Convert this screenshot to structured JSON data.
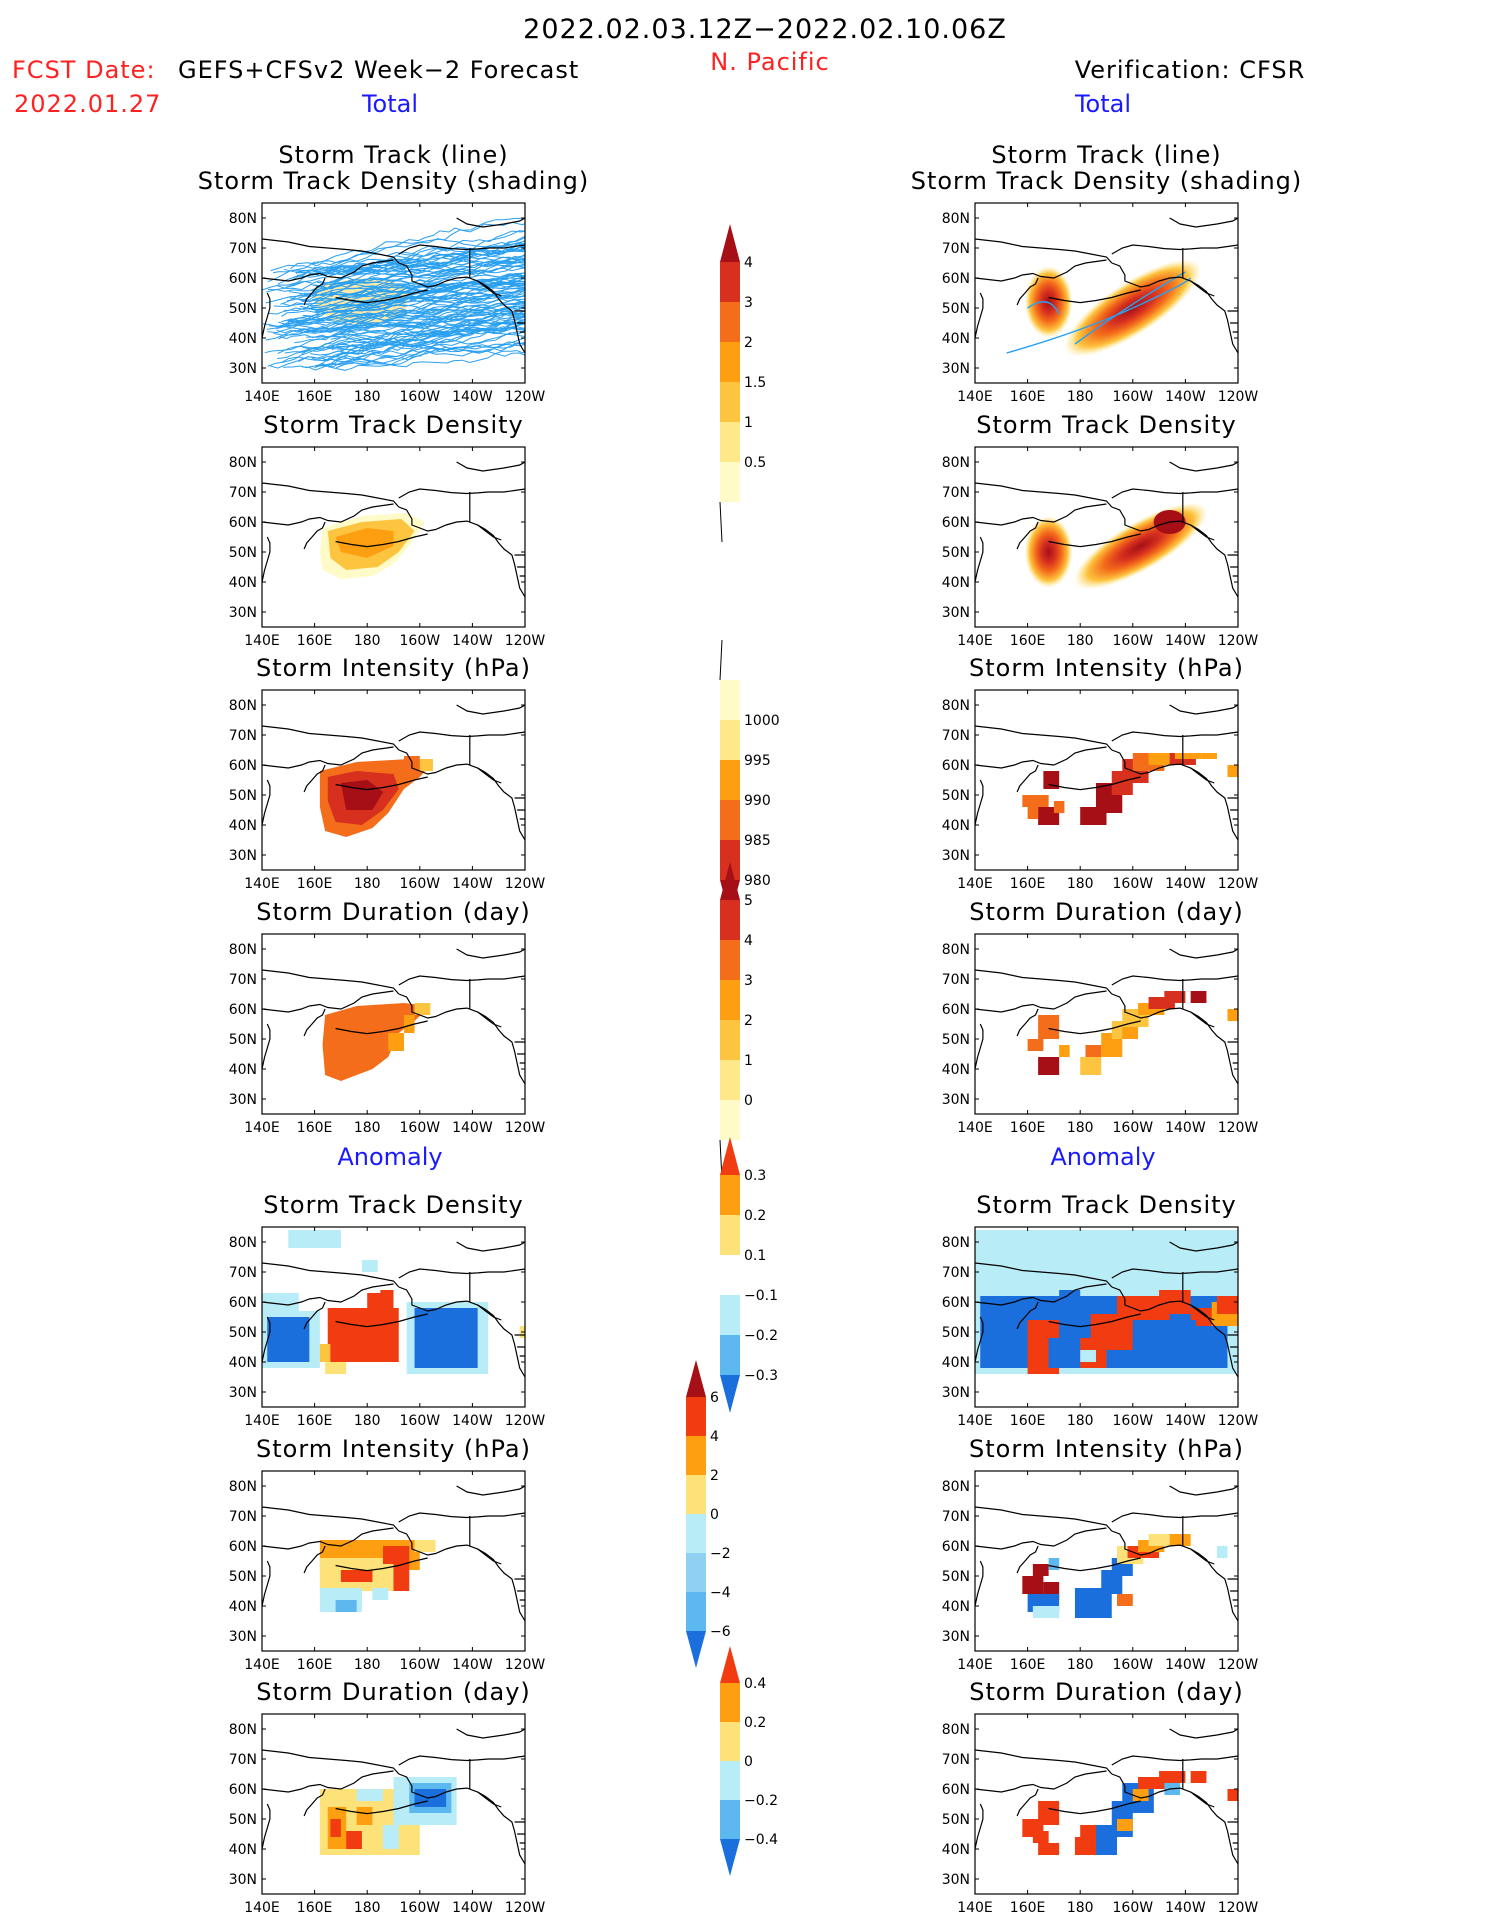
{
  "header": {
    "date_range": "2022.02.03.12Z−2022.02.10.06Z",
    "fcst_label": "FCST Date:",
    "fcst_model": "GEFS+CFSv2 Week−2 Forecast",
    "fcst_date": "2022.01.27",
    "region": "N. Pacific",
    "verification": "Verification: CFSR"
  },
  "sections": {
    "total": "Total",
    "anomaly": "Anomaly"
  },
  "panel_titles": {
    "track_line": "Storm Track (line)",
    "track_shading": "Storm Track Density (shading)",
    "density": "Storm Track Density",
    "intensity": "Storm Intensity (hPa)",
    "duration": "Storm Duration (day)"
  },
  "axes": {
    "lat_ticks": [
      "80N",
      "70N",
      "60N",
      "50N",
      "40N",
      "30N"
    ],
    "lon_ticks": [
      "140E",
      "160E",
      "180",
      "160W",
      "140W",
      "120W"
    ]
  },
  "colors": {
    "title_red": "#ff2020",
    "title_blue": "#1a1aff",
    "track_line": "#2aa0f0"
  },
  "chart_data": [
    {
      "type": "heatmap",
      "name": "colorbar-total-density",
      "levels": [
        "4",
        "3",
        "2",
        "1.5",
        "1",
        "0.5"
      ],
      "colors": [
        "#a50f15",
        "#d7301f",
        "#f46d1a",
        "#fd9f10",
        "#fdc43f",
        "#fee88a",
        "#fffbc8"
      ]
    },
    {
      "type": "heatmap",
      "name": "colorbar-total-intensity",
      "levels": [
        "1000",
        "995",
        "990",
        "985",
        "980"
      ],
      "colors": [
        "#fffbc8",
        "#fee88a",
        "#fd9f10",
        "#f46d1a",
        "#d7301f",
        "#a50f15"
      ]
    },
    {
      "type": "heatmap",
      "name": "colorbar-total-duration",
      "levels": [
        "5",
        "4",
        "3",
        "2",
        "1",
        "0"
      ],
      "colors": [
        "#a50f15",
        "#d7301f",
        "#f46d1a",
        "#fd9f10",
        "#fdc43f",
        "#fee88a",
        "#fffbc8"
      ]
    },
    {
      "type": "heatmap",
      "name": "colorbar-anom-density",
      "levels": [
        "0.3",
        "0.2",
        "0.1",
        "−0.1",
        "−0.2",
        "−0.3"
      ],
      "colors": [
        "#f03c10",
        "#fd9f10",
        "#fde27a",
        "#ffffff",
        "#b8ecf6",
        "#5eb8f0",
        "#1a6fdc"
      ]
    },
    {
      "type": "heatmap",
      "name": "colorbar-anom-intensity",
      "levels": [
        "6",
        "4",
        "2",
        "0",
        "−2",
        "−4",
        "−6"
      ],
      "colors": [
        "#a50f15",
        "#f03c10",
        "#fd9f10",
        "#fde27a",
        "#b8ecf6",
        "#90d0f2",
        "#5eb8f0",
        "#1a6fdc"
      ]
    },
    {
      "type": "heatmap",
      "name": "colorbar-anom-duration",
      "levels": [
        "0.4",
        "0.2",
        "0",
        "−0.2",
        "−0.4"
      ],
      "colors": [
        "#f03c10",
        "#fd9f10",
        "#fde27a",
        "#b8ecf6",
        "#5eb8f0",
        "#1a6fdc"
      ]
    }
  ]
}
